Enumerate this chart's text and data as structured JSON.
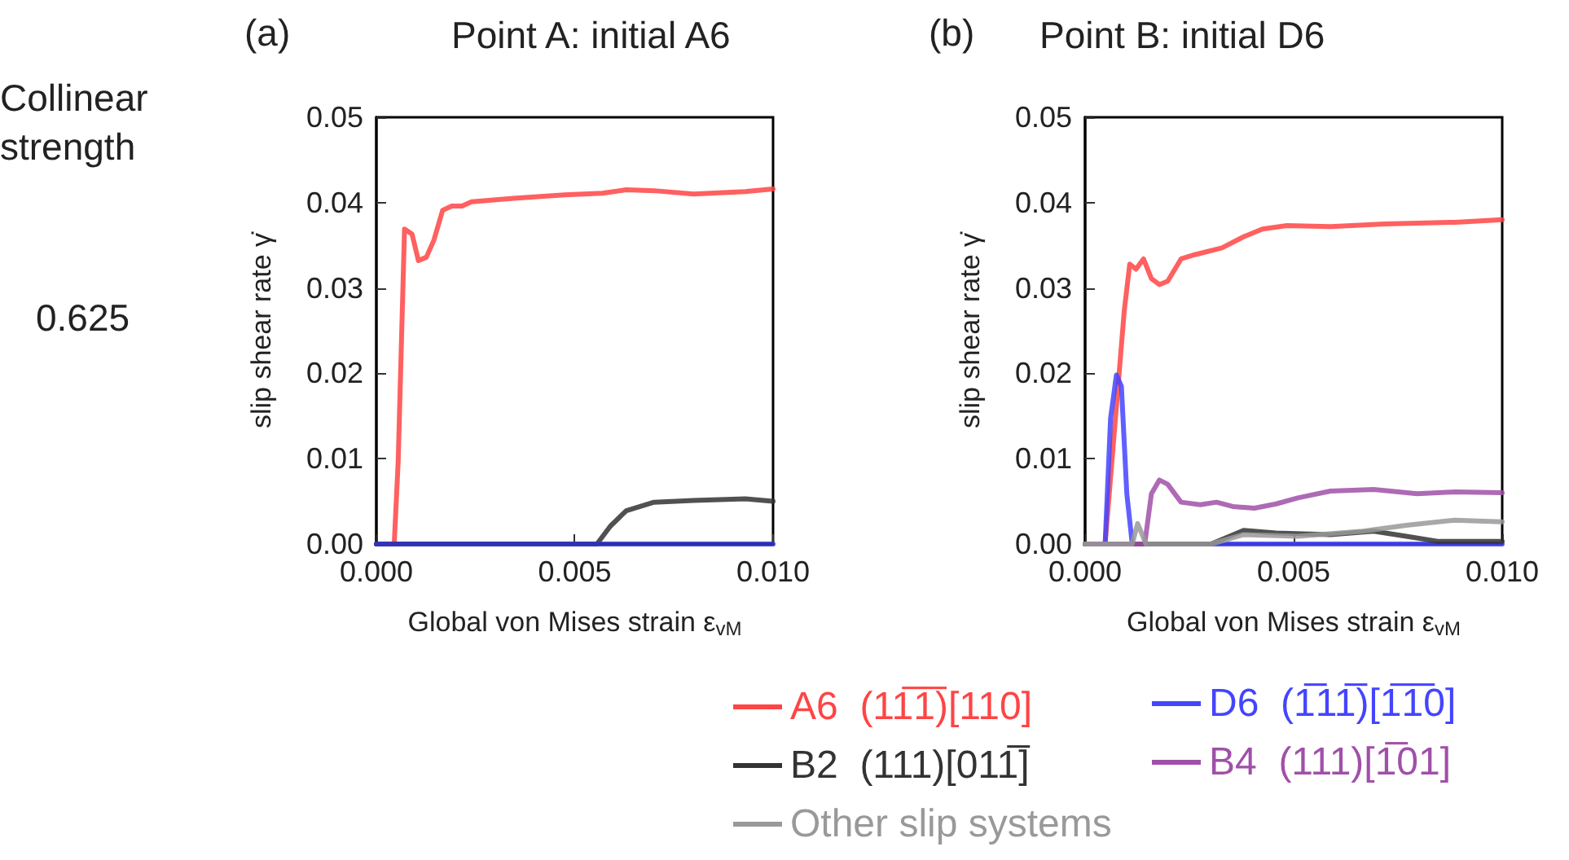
{
  "chart_data": [
    {
      "type": "line",
      "title": "Point A: initial A6",
      "xlabel": "Global von Mises strain ε$_{vM}$",
      "ylabel": "slip shear rate γ̇",
      "annotations": [
        "(a)",
        "Collinear strength",
        "0.625"
      ],
      "xlim": [
        0,
        0.01
      ],
      "xticks": [
        {
          "value": 0,
          "label": "0.000"
        },
        {
          "value": 0.005,
          "label": "0.005"
        },
        {
          "value": 0.01,
          "label": "0.010"
        }
      ],
      "ylim": [
        0,
        0.05
      ],
      "yticks": [
        {
          "value": 0,
          "label": "0.00"
        },
        {
          "value": 0.01,
          "label": "0.01"
        },
        {
          "value": 0.02,
          "label": "0.02"
        },
        {
          "value": 0.03,
          "label": "0.03"
        },
        {
          "value": 0.04,
          "label": "0.04"
        },
        {
          "value": 0.05,
          "label": "0.05"
        }
      ],
      "grid": false,
      "legend": false,
      "marker": "none",
      "line_style": "solid",
      "series": [
        {
          "color": "#ff4444",
          "x": [
            0,
            0.00045,
            0.00055,
            0.00071,
            0.0009,
            0.00106,
            0.00126,
            0.00145,
            0.00167,
            0.0019,
            0.00216,
            0.0024,
            0.00346,
            0.00475,
            0.0057,
            0.0063,
            0.007,
            0.008,
            0.0093,
            0.01
          ],
          "values": [
            0,
            0,
            0.0097,
            0.0369,
            0.0363,
            0.0332,
            0.0336,
            0.0356,
            0.0391,
            0.0396,
            0.0396,
            0.0401,
            0.0405,
            0.0409,
            0.0411,
            0.0415,
            0.0414,
            0.041,
            0.0413,
            0.0416
          ]
        },
        {
          "color": "#333333",
          "x": [
            0,
            0.00556,
            0.0059,
            0.0063,
            0.007,
            0.008,
            0.0093,
            0.01
          ],
          "values": [
            0,
            0,
            0.0021,
            0.0039,
            0.0049,
            0.0051,
            0.0053,
            0.005
          ]
        },
        {
          "color": "#3333cc",
          "x": [
            0,
            0.01
          ],
          "values": [
            0,
            0
          ]
        }
      ]
    },
    {
      "type": "line",
      "title": "Point B: initial D6",
      "xlabel": "Global von Mises strain ε$_{vM}$",
      "ylabel": "slip shear rate γ̇",
      "annotations": [
        "(b)"
      ],
      "xlim": [
        0,
        0.01
      ],
      "xticks": [
        {
          "value": 0,
          "label": "0.000"
        },
        {
          "value": 0.005,
          "label": "0.005"
        },
        {
          "value": 0.01,
          "label": "0.010"
        }
      ],
      "ylim": [
        0,
        0.05
      ],
      "yticks": [
        {
          "value": 0,
          "label": "0.00"
        },
        {
          "value": 0.01,
          "label": "0.01"
        },
        {
          "value": 0.02,
          "label": "0.02"
        },
        {
          "value": 0.03,
          "label": "0.03"
        },
        {
          "value": 0.04,
          "label": "0.04"
        },
        {
          "value": 0.05,
          "label": "0.05"
        }
      ],
      "grid": false,
      "legend": "bottom",
      "marker": "none",
      "line_style": "solid",
      "series": [
        {
          "name": "A6  (11̅1̅)[110]",
          "color": "#ff4444",
          "x": [
            0,
            0.00048,
            0.00094,
            0.00107,
            0.00122,
            0.0014,
            0.00159,
            0.00178,
            0.00198,
            0.0023,
            0.00263,
            0.00328,
            0.0038,
            0.00425,
            0.00484,
            0.00588,
            0.00718,
            0.00887,
            0.01
          ],
          "values": [
            0,
            0,
            0.0274,
            0.0328,
            0.0322,
            0.0334,
            0.0311,
            0.0304,
            0.0308,
            0.0334,
            0.0339,
            0.0347,
            0.036,
            0.0369,
            0.0373,
            0.0372,
            0.0375,
            0.0377,
            0.038
          ]
        },
        {
          "name": "D6  (1̅11̅)[1̅1̅0]",
          "color": "#4444ff",
          "x": [
            0,
            0.00048,
            0.00061,
            0.00075,
            0.00087,
            0.001,
            0.00113,
            0.01
          ],
          "values": [
            0,
            0,
            0.0147,
            0.0198,
            0.0185,
            0.0059,
            0,
            0
          ]
        },
        {
          "name": "B2  (111)[011̅]",
          "color": "#333333",
          "x": [
            0,
            0.00302,
            0.0038,
            0.00458,
            0.00588,
            0.00692,
            0.0077,
            0.00848,
            0.01
          ],
          "values": [
            0,
            0,
            0.0016,
            0.0013,
            0.0011,
            0.0015,
            0.0009,
            0.0003,
            0.0003
          ]
        },
        {
          "name": "B4  (111)[1̅01]",
          "color": "#a050a8",
          "x": [
            0,
            0.00143,
            0.00159,
            0.00178,
            0.00198,
            0.0023,
            0.00276,
            0.00315,
            0.00354,
            0.00406,
            0.00458,
            0.0051,
            0.00588,
            0.00692,
            0.00796,
            0.00887,
            0.01
          ],
          "values": [
            0,
            0,
            0.0059,
            0.0075,
            0.007,
            0.0049,
            0.0046,
            0.0049,
            0.0044,
            0.0042,
            0.0047,
            0.0054,
            0.0062,
            0.0064,
            0.0059,
            0.0061,
            0.006
          ]
        },
        {
          "name": "Other slip systems",
          "color": "#999999",
          "x": [
            0,
            0.00113,
            0.00126,
            0.00146,
            0.00302,
            0.0038,
            0.0051,
            0.00666,
            0.0077,
            0.00887,
            0.01
          ],
          "values": [
            0,
            0,
            0.0024,
            0,
            0,
            0.0011,
            0.0009,
            0.0015,
            0.0022,
            0.0028,
            0.0026
          ]
        }
      ]
    }
  ]
}
